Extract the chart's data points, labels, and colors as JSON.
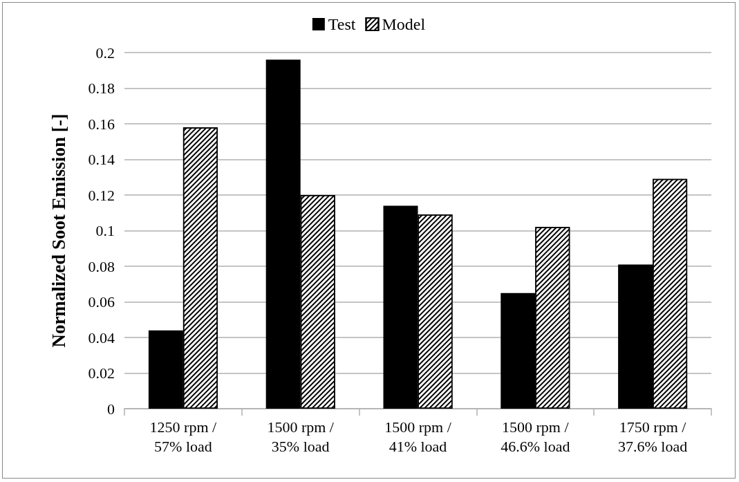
{
  "chart_data": {
    "type": "bar",
    "ylabel": "Normalized Soot Emission [-]",
    "categories": [
      "1250 rpm /\n57% load",
      "1500 rpm /\n35% load",
      "1500 rpm /\n41% load",
      "1500 rpm /\n46.6% load",
      "1750 rpm /\n37.6% load"
    ],
    "series": [
      {
        "name": "Test",
        "color": "#000000",
        "values": [
          0.044,
          0.196,
          0.114,
          0.065,
          0.081
        ]
      },
      {
        "name": "Model",
        "color": "#ffffff",
        "values": [
          0.158,
          0.12,
          0.109,
          0.102,
          0.129
        ]
      }
    ],
    "ylim": [
      0,
      0.2
    ],
    "yticks": [
      0,
      0.02,
      0.04,
      0.06,
      0.08,
      0.1,
      0.12,
      0.14,
      0.16,
      0.18,
      0.2
    ],
    "grid": "y",
    "legend": "top"
  }
}
